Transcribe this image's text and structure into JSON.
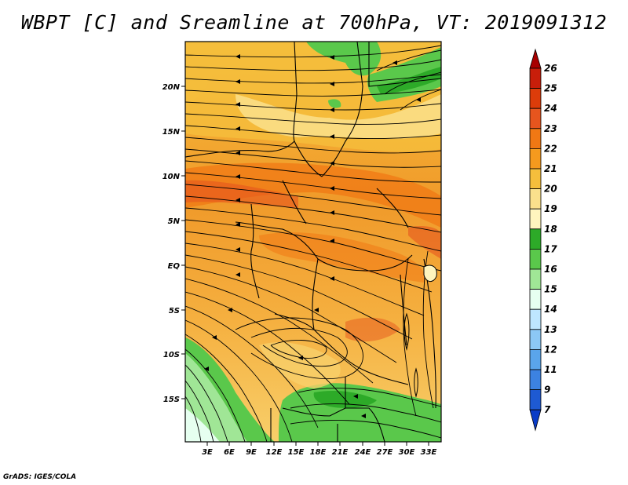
{
  "title": "WBPT [C] and Sreamline at 700hPa, VT: 2019091312",
  "credit": "GrADS: IGES/COLA",
  "map": {
    "lat_labels": [
      "20N",
      "15N",
      "10N",
      "5N",
      "EQ",
      "5S",
      "10S",
      "15S"
    ],
    "lon_labels": [
      "3E",
      "6E",
      "9E",
      "12E",
      "15E",
      "18E",
      "21E",
      "24E",
      "27E",
      "30E",
      "33E"
    ]
  },
  "colorbar": {
    "labels": [
      "26",
      "25",
      "24",
      "23",
      "22",
      "21",
      "20",
      "19",
      "18",
      "17",
      "16",
      "15",
      "14",
      "13",
      "12",
      "11",
      "9",
      "7"
    ],
    "colors": [
      "#a80000",
      "#c81e0a",
      "#dc3c0a",
      "#e6551e",
      "#f07814",
      "#f59a1e",
      "#f5be3c",
      "#fae08c",
      "#fff5be",
      "#2daa28",
      "#5ac84b",
      "#a0e696",
      "#e6fff0",
      "#bee6ff",
      "#8cc8f5",
      "#5aa5eb",
      "#3c82e1",
      "#1e5ad2",
      "#0a3cc8"
    ]
  }
}
